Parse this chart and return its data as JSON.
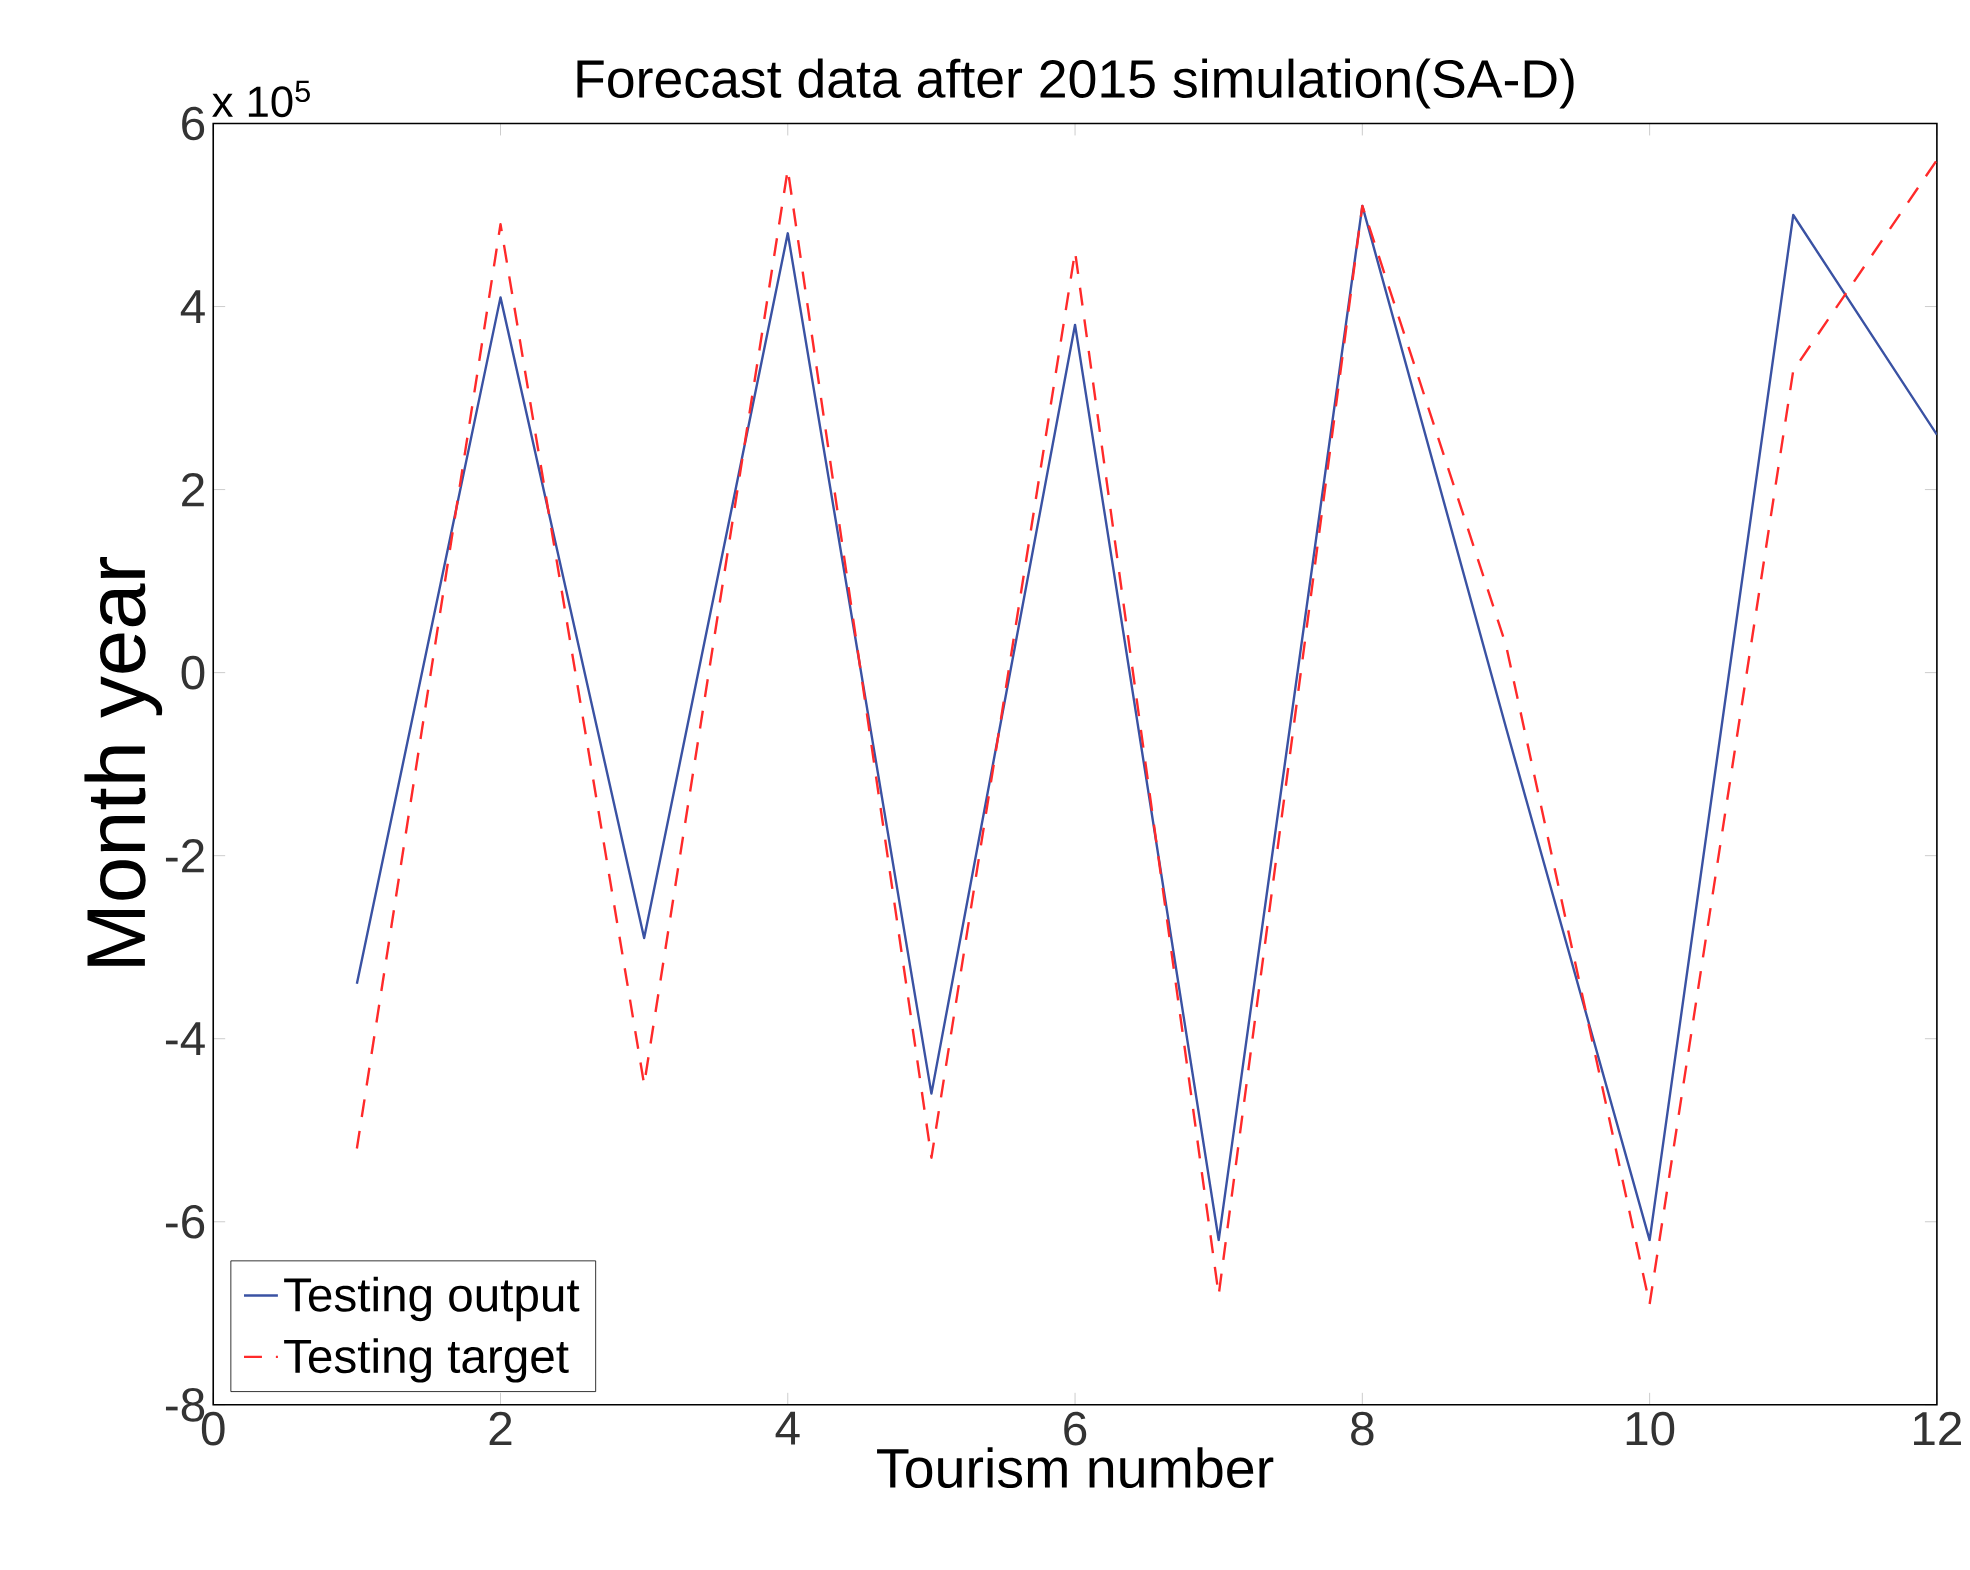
{
  "chart_data": {
    "type": "line",
    "title": "Forecast data after 2015 simulation(SA-D)",
    "xlabel": "Tourism number",
    "ylabel": "Month year",
    "annotations": [
      "x 10$^{5}$"
    ],
    "x": [
      1,
      2,
      3,
      4,
      5,
      6,
      7,
      8,
      9,
      10,
      11,
      12
    ],
    "series": [
      {
        "name": "Testing output",
        "color": "#3a52a3",
        "line_style": "solid",
        "values": [
          -3.4,
          4.1,
          -2.9,
          4.8,
          -4.6,
          3.8,
          -6.2,
          5.1,
          -0.6,
          -6.2,
          5.0,
          2.6
        ]
      },
      {
        "name": "Testing target",
        "color": "#ff2a2a",
        "line_style": "dashed",
        "values": [
          -5.2,
          4.9,
          -4.5,
          5.5,
          -5.3,
          4.6,
          -6.8,
          5.1,
          0.3,
          -6.9,
          3.3,
          5.6
        ]
      }
    ],
    "xlim": [
      0,
      12
    ],
    "xticks": [
      0,
      2,
      4,
      6,
      8,
      10,
      12
    ],
    "ylim": [
      -8,
      6
    ],
    "yticks": [
      -8,
      -6,
      -4,
      -2,
      0,
      2,
      4,
      6
    ],
    "grid": false,
    "legend": "bottom left"
  }
}
